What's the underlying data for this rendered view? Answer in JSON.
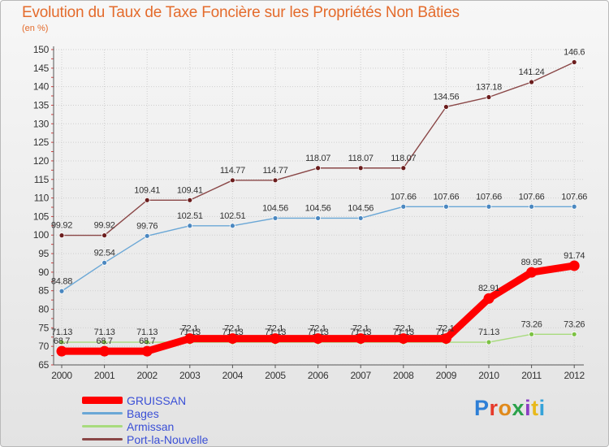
{
  "title": "Evolution du Taux de Taxe Foncière sur les Propriétés Non Bâties",
  "unit_label": "(en %)",
  "brand": {
    "text": "Proxiti",
    "colors": [
      "#2e7fd6",
      "#e63a2b",
      "#e08a1c",
      "#2aa14a",
      "#8b3fc4",
      "#e8b91a",
      "#36a3d9"
    ]
  },
  "colors": {
    "title": "#e46b2c",
    "axis_text": "#333333",
    "legend_text": "#3a4fd6",
    "grid": "#cfcfcf"
  },
  "legend": [
    {
      "label": "GRUISSAN",
      "color": "#ff0000"
    },
    {
      "label": "Bages",
      "color": "#6aa7d6"
    },
    {
      "label": "Armissan",
      "color": "#a8db7e"
    },
    {
      "label": "Port-la-Nouvelle",
      "color": "#8a4747"
    }
  ],
  "chart_data": {
    "type": "line",
    "title": "Evolution du Taux de Taxe Foncière sur les Propriétés Non Bâties",
    "ylabel": "(en %)",
    "xlabel": "",
    "x": [
      "2000",
      "2001",
      "2002",
      "2003",
      "2004",
      "2005",
      "2006",
      "2007",
      "2008",
      "2009",
      "2010",
      "2011",
      "2012"
    ],
    "ylim": [
      65,
      150
    ],
    "yticks": [
      65,
      70,
      75,
      80,
      85,
      90,
      95,
      100,
      105,
      110,
      115,
      120,
      125,
      130,
      135,
      140,
      145,
      150
    ],
    "grid": true,
    "series": [
      {
        "name": "Port-la-Nouvelle",
        "color": "#8a4747",
        "marker": "#6b1d1d",
        "values": [
          99.92,
          99.92,
          109.41,
          109.41,
          114.77,
          114.77,
          118.07,
          118.07,
          118.07,
          134.56,
          137.18,
          141.24,
          146.6
        ],
        "labels": [
          "99.92",
          "99.92",
          "109.41",
          "109.41",
          "114.77",
          "114.77",
          "118.07",
          "118.07",
          "118.07",
          "134.56",
          "137.18",
          "141.24",
          "146.6"
        ]
      },
      {
        "name": "Bages",
        "color": "#6aa7d6",
        "marker": "#4a87c0",
        "values": [
          84.88,
          92.54,
          99.76,
          102.51,
          102.51,
          104.56,
          104.56,
          104.56,
          107.66,
          107.66,
          107.66,
          107.66,
          107.66
        ],
        "labels": [
          "84.88",
          "92.54",
          "99.76",
          "102.51",
          "102.51",
          "104.56",
          "104.56",
          "104.56",
          "107.66",
          "107.66",
          "107.66",
          "107.66",
          "107.66"
        ]
      },
      {
        "name": "Armissan",
        "color": "#a8db7e",
        "marker": "#7cc143",
        "values": [
          71.13,
          71.13,
          71.13,
          71.13,
          71.13,
          71.13,
          71.13,
          71.13,
          71.13,
          71.13,
          71.13,
          73.26,
          73.26
        ],
        "labels": [
          "71.13",
          "71.13",
          "71.13",
          "71.13",
          "71.13",
          "71.13",
          "71.13",
          "71.13",
          "71.13",
          "71.13",
          "71.13",
          "73.26",
          "73.26"
        ]
      },
      {
        "name": "GRUISSAN",
        "color": "#ff0000",
        "marker": "#ff0000",
        "values": [
          68.7,
          68.7,
          68.7,
          72.1,
          72.1,
          72.1,
          72.1,
          72.1,
          72.1,
          72.1,
          82.91,
          89.95,
          91.74
        ],
        "labels": [
          "68.7",
          "68.7",
          "68.7",
          "72.1",
          "72.1",
          "72.1",
          "72.1",
          "72.1",
          "72.1",
          "72.1",
          "82.91",
          "89.95",
          "91.74"
        ]
      }
    ]
  }
}
